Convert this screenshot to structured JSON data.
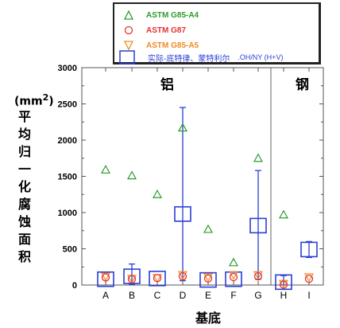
{
  "chart_data": {
    "type": "scatter",
    "categories": [
      "A",
      "B",
      "C",
      "D",
      "E",
      "F",
      "G",
      "H",
      "I"
    ],
    "ylim": [
      0,
      3000
    ],
    "yticks": [
      0,
      500,
      1000,
      1500,
      2000,
      2500,
      3000
    ],
    "ytick_labels": [
      "0",
      "500",
      "1000",
      "1500",
      "2000",
      "2500",
      "3000"
    ],
    "ylabel": "平均归一化腐蚀面积",
    "ylabel_unit": "(mm",
    "ylabel_unit_sup": "2",
    "ylabel_unit_close": ")",
    "xlabel": "基底",
    "regions": [
      {
        "label": "铝",
        "categories": [
          "A",
          "B",
          "C",
          "D",
          "E",
          "F",
          "G"
        ]
      },
      {
        "label": "钢",
        "categories": [
          "H",
          "I"
        ]
      }
    ],
    "series": [
      {
        "name": "ASTM G85-A4",
        "marker": "triangle-up",
        "color": "#2e9b2e",
        "values": [
          1590,
          1510,
          1250,
          2170,
          770,
          310,
          1750,
          970,
          null
        ]
      },
      {
        "name": "ASTM G87",
        "marker": "circle",
        "color": "#e83030",
        "values": [
          105,
          80,
          95,
          120,
          90,
          110,
          120,
          5,
          85
        ]
      },
      {
        "name": "ASTM G85-A5",
        "marker": "triangle-down",
        "color": "#f08a24",
        "values": [
          120,
          90,
          100,
          140,
          110,
          140,
          140,
          20,
          110
        ]
      },
      {
        "name": "实际-底特律、蒙特利尔",
        "marker": "square",
        "color": "#2a3fd6",
        "values": [
          80,
          120,
          90,
          980,
          70,
          80,
          820,
          40,
          490
        ],
        "err_high": [
          null,
          290,
          null,
          2450,
          null,
          null,
          1580,
          130,
          600
        ],
        "err_low": [
          null,
          10,
          null,
          60,
          null,
          null,
          80,
          0,
          380
        ]
      }
    ],
    "legend_extra_label": ".OH/NY (H+V)"
  }
}
